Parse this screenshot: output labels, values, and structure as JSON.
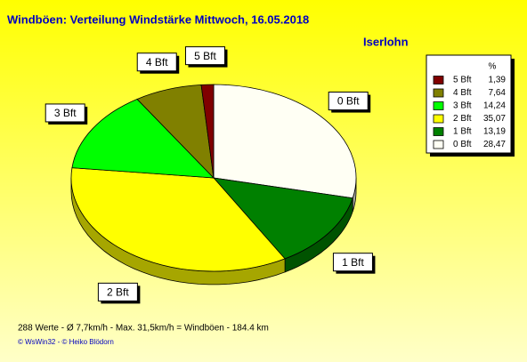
{
  "chart_data": {
    "type": "pie",
    "title": "Windböen: Verteilung Windstärke  Mittwoch, 16.05.2018",
    "subtitle": "Iserlohn",
    "legend_header": "%",
    "categories": [
      "5 Bft",
      "4 Bft",
      "3 Bft",
      "2 Bft",
      "1 Bft",
      "0 Bft"
    ],
    "values": [
      1.39,
      7.64,
      14.24,
      35.07,
      13.19,
      28.47
    ],
    "value_labels": [
      "1,39",
      "7,64",
      "14,24",
      "35,07",
      "13,19",
      "28,47"
    ],
    "colors": [
      "#800000",
      "#808000",
      "#00ff00",
      "#ffff00",
      "#008000",
      "#fffff4"
    ],
    "legend": "top-right",
    "footer": "288 Werte   -   Ø 7,7km/h  -  Max. 31,5km/h = Windböen   -   184.4 km",
    "credits": "© WsWin32  -  © Heiko Blödorn"
  }
}
